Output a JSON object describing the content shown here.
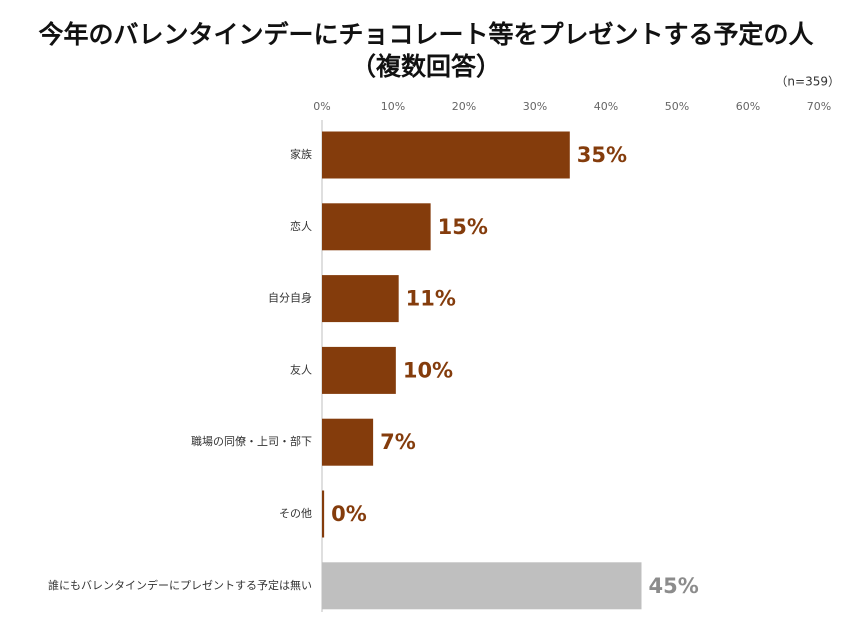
{
  "chart_data": {
    "type": "hbar",
    "title": "今年のバレンタインデーにチョコレート等をプレゼントする予定の人",
    "subtitle": "（複数回答）",
    "note": "（n=359）",
    "categories": [
      "家族",
      "恋人",
      "自分自身",
      "友人",
      "職場の同僚・上司・部下",
      "その他",
      "誰にもバレンタインデーにプレゼントする予定は無い"
    ],
    "values": [
      34.9,
      15.3,
      10.8,
      10.4,
      7.2,
      0.3,
      45.0
    ],
    "value_labels": [
      "35%",
      "15%",
      "11%",
      "10%",
      "7%",
      "0%",
      "45%"
    ],
    "colors": [
      "#843c0c",
      "#843c0c",
      "#843c0c",
      "#843c0c",
      "#843c0c",
      "#843c0c",
      "#bfbfbf"
    ],
    "label_colors": [
      "#843c0c",
      "#843c0c",
      "#843c0c",
      "#843c0c",
      "#843c0c",
      "#843c0c",
      "#8c8c8c"
    ],
    "xlim": [
      0,
      70
    ],
    "xticks": [
      {
        "value": 0,
        "label": "0%"
      },
      {
        "value": 10,
        "label": "10%"
      },
      {
        "value": 20,
        "label": "20%"
      },
      {
        "value": 30,
        "label": "30%"
      },
      {
        "value": 40,
        "label": "40%"
      },
      {
        "value": 50,
        "label": "50%"
      },
      {
        "value": 60,
        "label": "60%"
      },
      {
        "value": 70,
        "label": "70%"
      }
    ],
    "grid": false
  }
}
